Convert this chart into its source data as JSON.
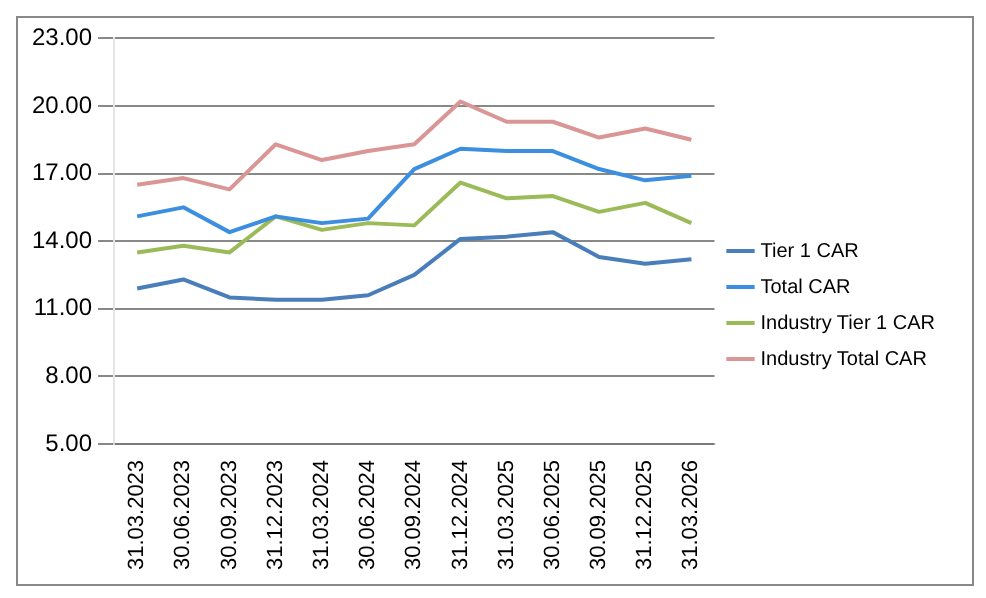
{
  "chart_data": {
    "type": "line",
    "categories": [
      "31.03.2023",
      "30.06.2023",
      "30.09.2023",
      "31.12.2023",
      "31.03.2024",
      "30.06.2024",
      "30.09.2024",
      "31.12.2024",
      "31.03.2025",
      "30.06.2025",
      "30.09.2025",
      "31.12.2025",
      "31.03.2026"
    ],
    "series": [
      {
        "name": "Tier 1 CAR",
        "color": "#4a7ebb",
        "values": [
          11.9,
          12.3,
          11.5,
          11.4,
          11.4,
          11.6,
          12.5,
          14.1,
          14.2,
          14.4,
          13.3,
          13.0,
          13.2
        ]
      },
      {
        "name": "Total CAR",
        "color": "#3c8fe0",
        "values": [
          15.1,
          15.5,
          14.4,
          15.1,
          14.8,
          15.0,
          17.2,
          18.1,
          18.0,
          18.0,
          17.2,
          16.7,
          16.9
        ]
      },
      {
        "name": "Industry Tier 1 CAR",
        "color": "#9bbb59",
        "values": [
          13.5,
          13.8,
          13.5,
          15.1,
          14.5,
          14.8,
          14.7,
          16.6,
          15.9,
          16.0,
          15.3,
          15.7,
          14.8
        ]
      },
      {
        "name": "Industry Total CAR",
        "color": "#d99694",
        "values": [
          16.5,
          16.8,
          16.3,
          18.3,
          17.6,
          18.0,
          18.3,
          20.2,
          19.3,
          19.3,
          18.6,
          19.0,
          18.5
        ]
      }
    ],
    "ylim": [
      5,
      23
    ],
    "yticks": [
      {
        "value": 5,
        "label": "5.00"
      },
      {
        "value": 8,
        "label": "8.00"
      },
      {
        "value": 11,
        "label": "11.00"
      },
      {
        "value": 14,
        "label": "14.00"
      },
      {
        "value": 17,
        "label": "17.00"
      },
      {
        "value": 20,
        "label": "20.00"
      },
      {
        "value": 23,
        "label": "23.00"
      }
    ],
    "grid": "y",
    "legend": "right",
    "marker": "none",
    "line_style": "solid"
  }
}
